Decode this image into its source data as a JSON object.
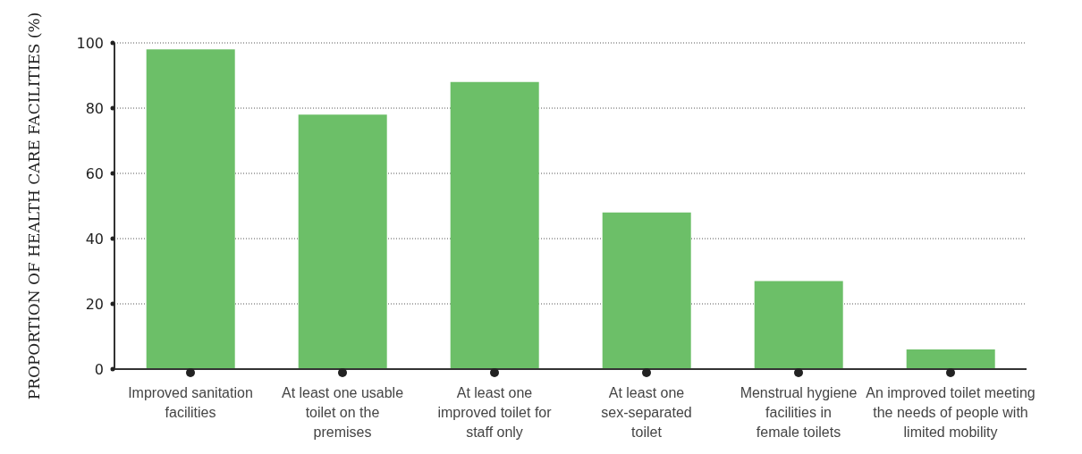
{
  "chart_data": {
    "type": "bar",
    "ylabel": "PROPORTION OF HEALTH CARE FACILITIES (%)",
    "categories": [
      "Improved sanitation facilities",
      "At least one usable toilet on the premises",
      "At least one improved toilet for staff only",
      "At least one sex-separated toilet",
      "Menstrual hygiene facilities in female toilets",
      "An improved toilet meeting the needs of people with limited mobility"
    ],
    "values": [
      98,
      78,
      88,
      48,
      27,
      6
    ],
    "color": "#6cbf68",
    "ylim": [
      0,
      100
    ],
    "yticks": [
      0,
      20,
      40,
      60,
      80,
      100
    ],
    "grid": "y"
  }
}
